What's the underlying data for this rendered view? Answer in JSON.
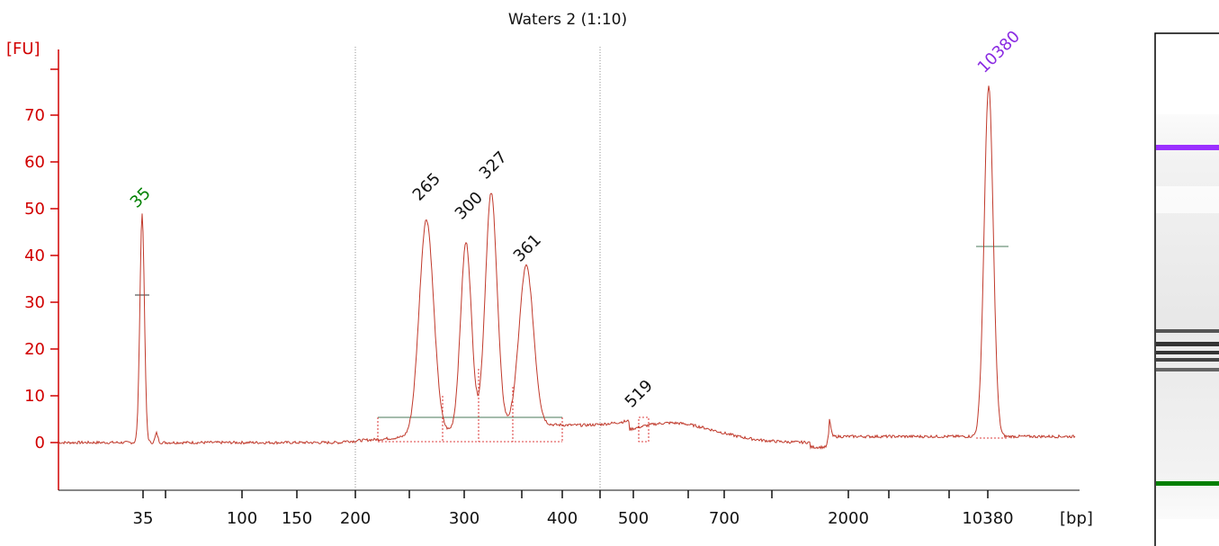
{
  "chart_data": {
    "type": "line",
    "title": "Waters 2 (1:10)",
    "ylabel": "[FU]",
    "xlabel": "[bp]",
    "ylim": [
      -10,
      80
    ],
    "y_ticks": [
      {
        "value": 0,
        "label": "0"
      },
      {
        "value": 10,
        "label": "10"
      },
      {
        "value": 20,
        "label": "20"
      },
      {
        "value": 30,
        "label": "30"
      },
      {
        "value": 40,
        "label": "40"
      },
      {
        "value": 50,
        "label": "50"
      },
      {
        "value": 60,
        "label": "60"
      },
      {
        "value": 70,
        "label": "70"
      }
    ],
    "x_ticks": [
      "35",
      "",
      "100",
      "150",
      "200",
      "",
      "300",
      "",
      "400",
      "",
      "500",
      "",
      "700",
      "",
      "2000",
      "",
      "10380"
    ],
    "peaks": [
      {
        "label": "35",
        "bp": 35,
        "fu": 49,
        "color": "#008000"
      },
      {
        "label": "265",
        "bp": 265,
        "fu": 50,
        "color": "#111111"
      },
      {
        "label": "300",
        "bp": 300,
        "fu": 46,
        "color": "#111111"
      },
      {
        "label": "327",
        "bp": 327,
        "fu": 55,
        "color": "#111111"
      },
      {
        "label": "361",
        "bp": 361,
        "fu": 37,
        "color": "#111111"
      },
      {
        "label": "519",
        "bp": 519,
        "fu": 5,
        "color": "#111111"
      },
      {
        "label": "10380",
        "bp": 10380,
        "fu": 77,
        "color": "#8a2be2"
      }
    ],
    "grid": false,
    "series_color": "#c0392b",
    "axis_color": "#d10000"
  },
  "gel": {
    "bands": [
      {
        "name": "upper-marker",
        "color": "#9b30ff"
      },
      {
        "name": "sample-band-1",
        "color": "#555555"
      },
      {
        "name": "sample-band-2",
        "color": "#333333"
      },
      {
        "name": "sample-band-3",
        "color": "#333333"
      },
      {
        "name": "sample-band-4",
        "color": "#444444"
      },
      {
        "name": "sample-band-5",
        "color": "#666666"
      },
      {
        "name": "lower-marker",
        "color": "#008000"
      }
    ]
  }
}
